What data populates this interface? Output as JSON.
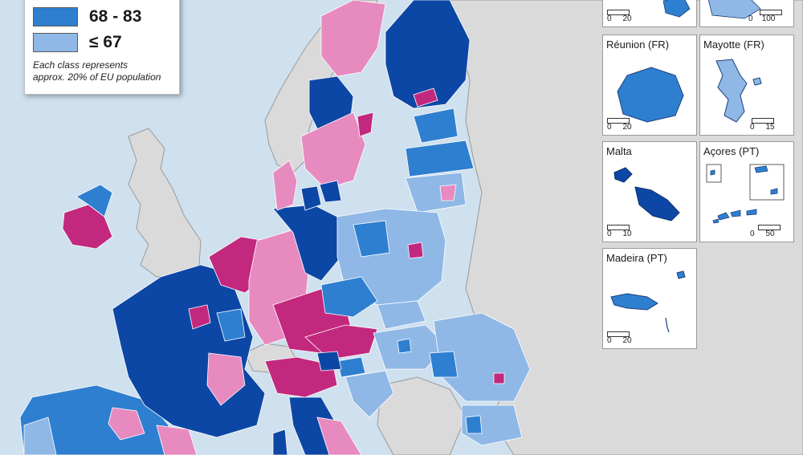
{
  "legend": {
    "classes": [
      {
        "label": "68 - 83",
        "color": "#2f7fd0"
      },
      {
        "label": "≤ 67",
        "color": "#8fb8e6"
      }
    ],
    "note_line1": "Each class represents",
    "note_line2": "approx. 20% of EU population"
  },
  "colors": {
    "dark_blue": "#0d47a6",
    "medium_blue": "#2f7fd0",
    "light_blue": "#8fb8e6",
    "pink": "#e78ac0",
    "magenta": "#c2297e",
    "non_eu": "#dadada",
    "sea": "#cfe0ee"
  },
  "insets": [
    {
      "title": "",
      "scale_left": "0",
      "scale_right": "20"
    },
    {
      "title": "",
      "scale_left": "0",
      "scale_right": "100"
    },
    {
      "title": "Réunion (FR)",
      "scale_left": "0",
      "scale_right": "20"
    },
    {
      "title": "Mayotte (FR)",
      "scale_left": "0",
      "scale_right": "15"
    },
    {
      "title": "Malta",
      "scale_left": "0",
      "scale_right": "10"
    },
    {
      "title": "Açores (PT)",
      "scale_left": "0",
      "scale_right": "50"
    },
    {
      "title": "Madeira (PT)",
      "scale_left": "0",
      "scale_right": "20"
    }
  ]
}
